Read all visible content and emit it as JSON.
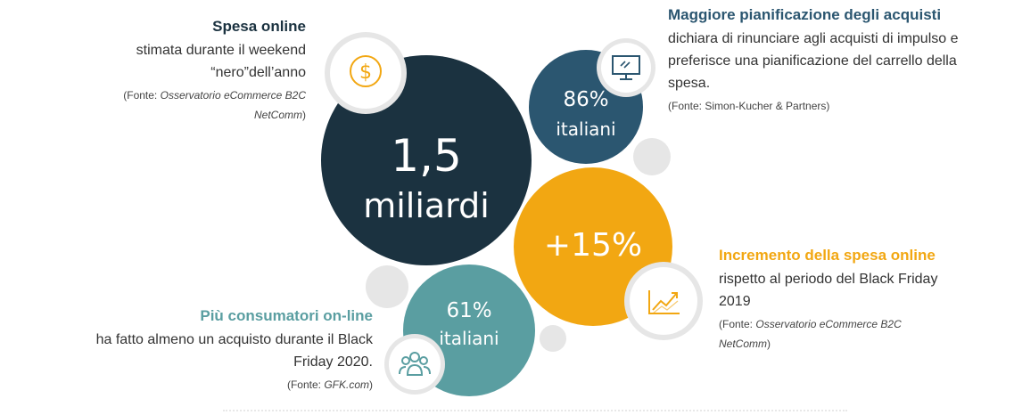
{
  "colors": {
    "dark": "#1b3240",
    "blue": "#2b5670",
    "orange": "#f2a712",
    "teal": "#5a9ea1",
    "grey": "#e6e6e6"
  },
  "bubbles": {
    "main": {
      "line1": "1,5",
      "line2": "miliardi"
    },
    "planning": {
      "line1": "86%",
      "line2": "italiani"
    },
    "increment": {
      "line1": "+15%"
    },
    "consumers": {
      "line1": "61%",
      "line2": "italiani"
    }
  },
  "blocks": {
    "spesa": {
      "title": "Spesa online",
      "desc1": "stimata durante il weekend",
      "desc2": "“nero”dell’anno",
      "src_prefix": "(Fonte: ",
      "src_em1": "Osservatorio eCommerce B2C",
      "src_em2": "NetComm",
      "src_suffix": ")"
    },
    "planning": {
      "title": "Maggiore pianificazione degli acquisti",
      "desc1": "dichiara di rinunciare agli acquisti di impulso e",
      "desc2": "preferisce una pianificazione del carrello della",
      "desc3": "spesa.",
      "src": "(Fonte: Simon-Kucher & Partners)"
    },
    "increment": {
      "title": "Incremento della spesa online",
      "desc1": "rispetto al periodo del Black Friday",
      "desc2": "2019",
      "src_prefix": "(Fonte: ",
      "src_em1": "Osservatorio eCommerce B2C",
      "src_em2": "NetComm",
      "src_suffix": ")"
    },
    "consumers": {
      "title": "Più consumatori on-line",
      "desc1": "ha fatto almeno un acquisto durante il Black",
      "desc2": "Friday 2020.",
      "src_prefix": "(Fonte: ",
      "src_em": "GFK.com",
      "src_suffix": ")"
    }
  },
  "icons": [
    "dollar-icon",
    "monitor-icon",
    "growth-chart-icon",
    "people-icon"
  ]
}
